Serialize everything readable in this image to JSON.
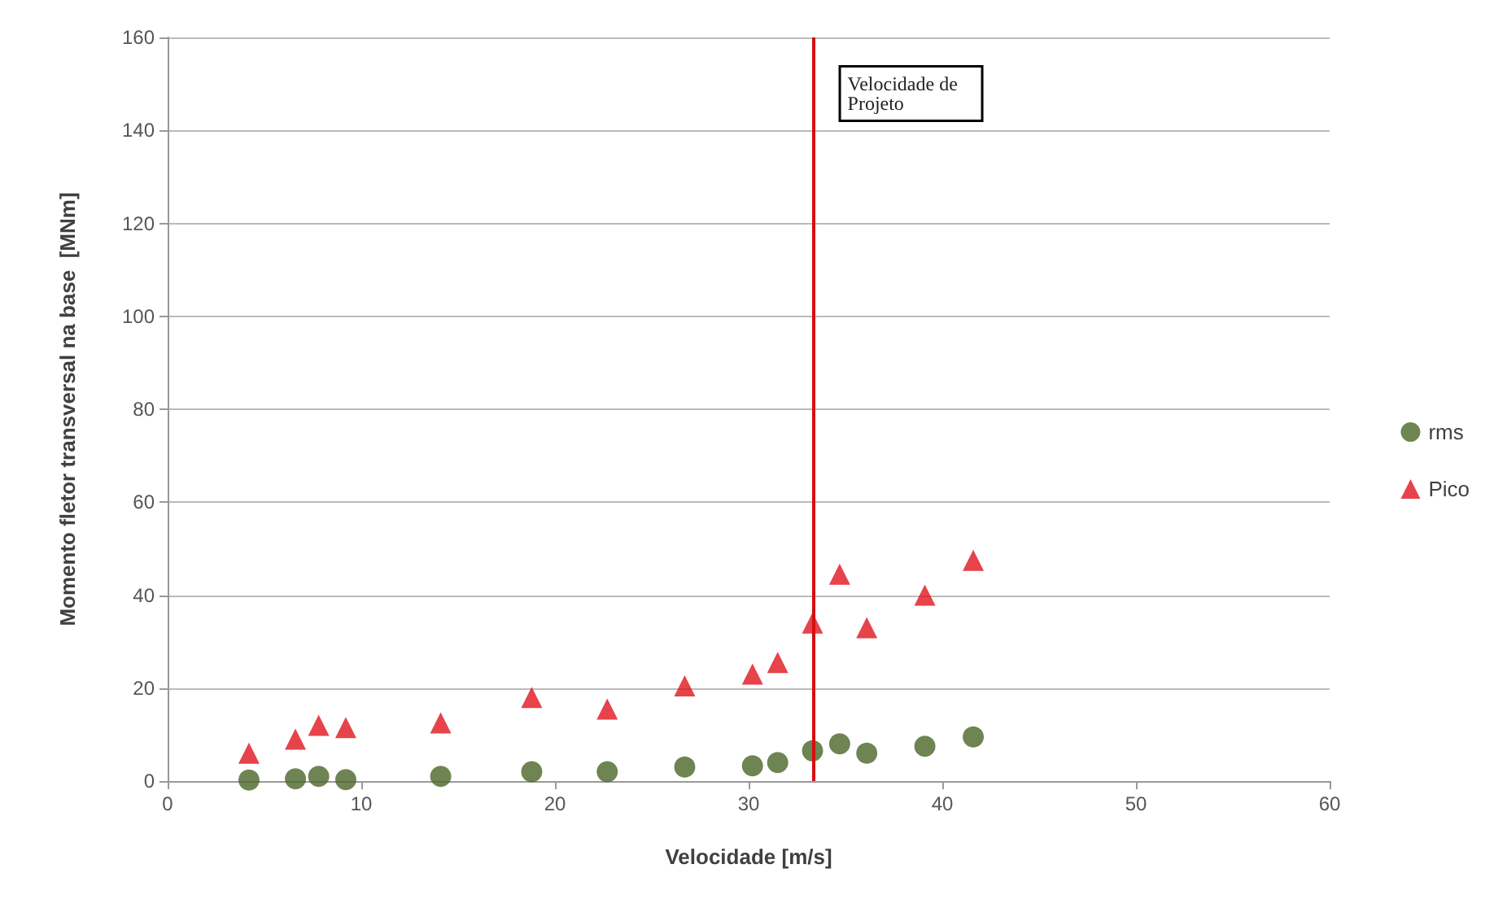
{
  "chart_data": {
    "type": "scatter",
    "xlabel": "Velocidade [m/s]",
    "ylabel": "Momento fletor transversal na base  [MNm]",
    "x": [
      4.2,
      6.6,
      7.8,
      9.2,
      14.1,
      18.8,
      22.7,
      26.7,
      30.2,
      31.5,
      33.3,
      34.7,
      36.1,
      39.1,
      41.6
    ],
    "series": [
      {
        "name": "rms",
        "color": "#4a6527",
        "marker": "circle",
        "values": [
          0.2,
          0.5,
          1,
          0.3,
          1,
          2,
          2,
          3,
          3.3,
          4,
          6.5,
          8,
          6,
          7.5,
          9.5
        ]
      },
      {
        "name": "Pico",
        "color": "#e0141e",
        "marker": "triangle",
        "values": [
          6,
          9,
          12,
          11.5,
          12.5,
          18,
          15.5,
          20.5,
          23,
          25.5,
          34,
          44.5,
          33,
          40,
          47.5
        ]
      }
    ],
    "xlim": [
      0,
      60
    ],
    "xticks": [
      0,
      10,
      20,
      30,
      40,
      50,
      60
    ],
    "ylim": [
      0,
      160
    ],
    "yticks": [
      0,
      20,
      40,
      60,
      80,
      100,
      120,
      140,
      160
    ],
    "ref_lines": [
      {
        "axis": "x",
        "value": 33.3,
        "label": "Velocidade de Projeto",
        "color": "#d40f0f",
        "line_style": "solid"
      }
    ],
    "grid": "y",
    "legend": "right"
  }
}
